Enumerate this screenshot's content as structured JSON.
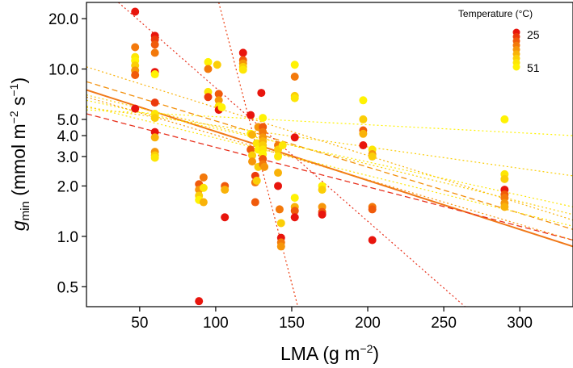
{
  "chart_data": {
    "type": "scatter",
    "xlabel": "LMA",
    "xlabel_unit_base": "g m",
    "xlabel_unit_exp": "−2",
    "xlabel_close": ")",
    "ylabel": {
      "main": "g",
      "sub": "min",
      "unit_open": " (mmol m",
      "exp1": "−2",
      "mid": " s",
      "exp2": "−1",
      "close": ")"
    },
    "xlim": [
      15,
      335
    ],
    "ylim": [
      0.38,
      25
    ],
    "yscale": "log",
    "xticks": [
      50,
      100,
      150,
      200,
      250,
      300
    ],
    "xtick_labels": [
      "50",
      "100",
      "150",
      "200",
      "250",
      "300"
    ],
    "yticks": [
      0.5,
      1.0,
      2.0,
      3.0,
      4.0,
      5.0,
      10.0,
      20.0
    ],
    "ytick_labels": [
      "0.5",
      "1.0",
      "2.0",
      "3.0",
      "4.0",
      "5.0",
      "10.0",
      "20.0"
    ],
    "legend": {
      "title": "Temperature (°C)",
      "min_label": "25",
      "max_label": "51",
      "placement": "top-right",
      "colors": [
        "#e8150d",
        "#ec3a0c",
        "#f05a0b",
        "#f3790b",
        "#f6960a",
        "#f9b209",
        "#fbce07",
        "#fde605",
        "#fff203"
      ]
    },
    "points": [
      {
        "x": 47,
        "y": 22,
        "c": "#e8150d"
      },
      {
        "x": 47,
        "y": 13.5,
        "c": "#f3790b"
      },
      {
        "x": 47,
        "y": 11.8,
        "c": "#fde605"
      },
      {
        "x": 47,
        "y": 11.2,
        "c": "#fff203"
      },
      {
        "x": 47,
        "y": 10.5,
        "c": "#fbce07"
      },
      {
        "x": 47,
        "y": 9.8,
        "c": "#f6960a"
      },
      {
        "x": 47,
        "y": 9.2,
        "c": "#f05a0b"
      },
      {
        "x": 47,
        "y": 5.8,
        "c": "#e8150d"
      },
      {
        "x": 60,
        "y": 15.8,
        "c": "#e8150d"
      },
      {
        "x": 60,
        "y": 15.0,
        "c": "#ec3a0c"
      },
      {
        "x": 60,
        "y": 14.0,
        "c": "#f05a0b"
      },
      {
        "x": 60,
        "y": 12.5,
        "c": "#f3790b"
      },
      {
        "x": 60,
        "y": 9.6,
        "c": "#e8150d"
      },
      {
        "x": 60,
        "y": 9.3,
        "c": "#fff203"
      },
      {
        "x": 60,
        "y": 6.3,
        "c": "#ec3a0c"
      },
      {
        "x": 60,
        "y": 5.4,
        "c": "#fde605"
      },
      {
        "x": 60,
        "y": 5.1,
        "c": "#fbce07"
      },
      {
        "x": 60,
        "y": 4.2,
        "c": "#e8150d"
      },
      {
        "x": 60,
        "y": 3.9,
        "c": "#f9b209"
      },
      {
        "x": 60,
        "y": 3.2,
        "c": "#f6960a"
      },
      {
        "x": 60,
        "y": 3.05,
        "c": "#fbce07"
      },
      {
        "x": 60,
        "y": 2.95,
        "c": "#fde605"
      },
      {
        "x": 89,
        "y": 0.41,
        "c": "#e8150d"
      },
      {
        "x": 89,
        "y": 2.05,
        "c": "#f05a0b"
      },
      {
        "x": 89,
        "y": 1.9,
        "c": "#f6960a"
      },
      {
        "x": 89,
        "y": 1.75,
        "c": "#fbce07"
      },
      {
        "x": 89,
        "y": 1.65,
        "c": "#fff203"
      },
      {
        "x": 92,
        "y": 2.25,
        "c": "#f3790b"
      },
      {
        "x": 92,
        "y": 1.95,
        "c": "#fde605"
      },
      {
        "x": 92,
        "y": 1.6,
        "c": "#f9b209"
      },
      {
        "x": 95,
        "y": 11.0,
        "c": "#fff203"
      },
      {
        "x": 95,
        "y": 10.0,
        "c": "#f3790b"
      },
      {
        "x": 95,
        "y": 7.3,
        "c": "#fde605"
      },
      {
        "x": 95,
        "y": 6.8,
        "c": "#ec3a0c"
      },
      {
        "x": 101,
        "y": 10.6,
        "c": "#fbce07"
      },
      {
        "x": 102,
        "y": 7.1,
        "c": "#f05a0b"
      },
      {
        "x": 102,
        "y": 6.5,
        "c": "#f6960a"
      },
      {
        "x": 102,
        "y": 6.0,
        "c": "#fde605"
      },
      {
        "x": 102,
        "y": 5.7,
        "c": "#e8150d"
      },
      {
        "x": 104,
        "y": 5.9,
        "c": "#fff203"
      },
      {
        "x": 106,
        "y": 2.0,
        "c": "#f05a0b"
      },
      {
        "x": 106,
        "y": 1.9,
        "c": "#f9b209"
      },
      {
        "x": 106,
        "y": 1.3,
        "c": "#e8150d"
      },
      {
        "x": 118,
        "y": 12.5,
        "c": "#e8150d"
      },
      {
        "x": 118,
        "y": 11.3,
        "c": "#f05a0b"
      },
      {
        "x": 118,
        "y": 10.8,
        "c": "#f6960a"
      },
      {
        "x": 118,
        "y": 10.3,
        "c": "#fbce07"
      },
      {
        "x": 118,
        "y": 9.9,
        "c": "#fde605"
      },
      {
        "x": 123,
        "y": 5.3,
        "c": "#e8150d"
      },
      {
        "x": 123,
        "y": 4.1,
        "c": "#fff203"
      },
      {
        "x": 123,
        "y": 3.3,
        "c": "#f05a0b"
      },
      {
        "x": 124,
        "y": 4.05,
        "c": "#f9b209"
      },
      {
        "x": 124,
        "y": 3.05,
        "c": "#fbce07"
      },
      {
        "x": 124,
        "y": 2.8,
        "c": "#f6960a"
      },
      {
        "x": 126,
        "y": 2.3,
        "c": "#ec3a0c"
      },
      {
        "x": 126,
        "y": 2.1,
        "c": "#f3790b"
      },
      {
        "x": 126,
        "y": 1.6,
        "c": "#f05a0b"
      },
      {
        "x": 127,
        "y": 3.6,
        "c": "#fde605"
      },
      {
        "x": 127,
        "y": 2.15,
        "c": "#fbce07"
      },
      {
        "x": 128,
        "y": 4.5,
        "c": "#f6960a"
      },
      {
        "x": 128,
        "y": 3.3,
        "c": "#fff203"
      },
      {
        "x": 128,
        "y": 2.6,
        "c": "#fbce07"
      },
      {
        "x": 130,
        "y": 7.2,
        "c": "#e8150d"
      },
      {
        "x": 131,
        "y": 5.1,
        "c": "#fff203"
      },
      {
        "x": 131,
        "y": 4.5,
        "c": "#f05a0b"
      },
      {
        "x": 131,
        "y": 4.2,
        "c": "#f3790b"
      },
      {
        "x": 131,
        "y": 3.9,
        "c": "#f6960a"
      },
      {
        "x": 131,
        "y": 3.7,
        "c": "#f9b209"
      },
      {
        "x": 131,
        "y": 3.5,
        "c": "#fbce07"
      },
      {
        "x": 131,
        "y": 3.3,
        "c": "#fde605"
      },
      {
        "x": 131,
        "y": 3.1,
        "c": "#fff203"
      },
      {
        "x": 131,
        "y": 2.9,
        "c": "#f05a0b"
      },
      {
        "x": 131,
        "y": 2.7,
        "c": "#f3790b"
      },
      {
        "x": 132,
        "y": 2.6,
        "c": "#f6960a"
      },
      {
        "x": 141,
        "y": 3.5,
        "c": "#f3790b"
      },
      {
        "x": 141,
        "y": 3.3,
        "c": "#fbce07"
      },
      {
        "x": 141,
        "y": 3.0,
        "c": "#fde605"
      },
      {
        "x": 141,
        "y": 2.4,
        "c": "#f9b209"
      },
      {
        "x": 141,
        "y": 2.0,
        "c": "#e8150d"
      },
      {
        "x": 142,
        "y": 1.45,
        "c": "#f3790b"
      },
      {
        "x": 143,
        "y": 1.2,
        "c": "#fbce07"
      },
      {
        "x": 143,
        "y": 0.98,
        "c": "#e8150d"
      },
      {
        "x": 143,
        "y": 0.92,
        "c": "#f3790b"
      },
      {
        "x": 143,
        "y": 0.87,
        "c": "#f6960a"
      },
      {
        "x": 144,
        "y": 3.5,
        "c": "#fde605"
      },
      {
        "x": 152,
        "y": 10.6,
        "c": "#fff203"
      },
      {
        "x": 152,
        "y": 9.0,
        "c": "#f3790b"
      },
      {
        "x": 152,
        "y": 6.9,
        "c": "#fbce07"
      },
      {
        "x": 152,
        "y": 6.7,
        "c": "#fde605"
      },
      {
        "x": 152,
        "y": 3.9,
        "c": "#e8150d"
      },
      {
        "x": 152,
        "y": 1.7,
        "c": "#fff203"
      },
      {
        "x": 152,
        "y": 1.5,
        "c": "#f9b209"
      },
      {
        "x": 152,
        "y": 1.42,
        "c": "#f05a0b"
      },
      {
        "x": 152,
        "y": 1.3,
        "c": "#e8150d"
      },
      {
        "x": 170,
        "y": 2.0,
        "c": "#fff203"
      },
      {
        "x": 170,
        "y": 1.9,
        "c": "#fbce07"
      },
      {
        "x": 170,
        "y": 1.5,
        "c": "#f6960a"
      },
      {
        "x": 170,
        "y": 1.4,
        "c": "#f05a0b"
      },
      {
        "x": 170,
        "y": 1.35,
        "c": "#e8150d"
      },
      {
        "x": 197,
        "y": 6.5,
        "c": "#fff203"
      },
      {
        "x": 197,
        "y": 5.0,
        "c": "#fbce07"
      },
      {
        "x": 197,
        "y": 4.3,
        "c": "#f05a0b"
      },
      {
        "x": 197,
        "y": 4.1,
        "c": "#f9b209"
      },
      {
        "x": 197,
        "y": 3.5,
        "c": "#e8150d"
      },
      {
        "x": 203,
        "y": 3.3,
        "c": "#fde605"
      },
      {
        "x": 203,
        "y": 3.1,
        "c": "#f6960a"
      },
      {
        "x": 203,
        "y": 3.0,
        "c": "#fbce07"
      },
      {
        "x": 203,
        "y": 1.5,
        "c": "#f3790b"
      },
      {
        "x": 203,
        "y": 1.45,
        "c": "#f05a0b"
      },
      {
        "x": 203,
        "y": 0.95,
        "c": "#e8150d"
      },
      {
        "x": 290,
        "y": 5.0,
        "c": "#fff203"
      },
      {
        "x": 290,
        "y": 2.35,
        "c": "#fde605"
      },
      {
        "x": 290,
        "y": 2.2,
        "c": "#fbce07"
      },
      {
        "x": 290,
        "y": 1.9,
        "c": "#e8150d"
      },
      {
        "x": 290,
        "y": 1.78,
        "c": "#f05a0b"
      },
      {
        "x": 290,
        "y": 1.7,
        "c": "#f3790b"
      },
      {
        "x": 290,
        "y": 1.58,
        "c": "#f6960a"
      },
      {
        "x": 290,
        "y": 1.5,
        "c": "#f9b209"
      }
    ],
    "fit_lines": [
      {
        "name": "overall",
        "color": "#f07818",
        "dash": "solid",
        "width": 2,
        "y0": 7.5,
        "y1": 0.87
      },
      {
        "name": "fit-25-dashed",
        "color": "#e8321e",
        "dash": "dashed",
        "width": 1.3,
        "y0": 5.4,
        "y1": 0.95
      },
      {
        "name": "fit-mid-dashed",
        "color": "#f3900c",
        "dash": "dashed",
        "width": 1.3,
        "y0": 8.4,
        "y1": 1.1
      },
      {
        "name": "fit-a",
        "color": "#f9b209",
        "dash": "dotted",
        "width": 1.2,
        "y0": 10.3,
        "y1": 1.25
      },
      {
        "name": "fit-b",
        "color": "#fbce07",
        "dash": "dotted",
        "width": 1.2,
        "y0": 7.0,
        "y1": 1.35
      },
      {
        "name": "fit-c",
        "color": "#fde605",
        "dash": "dotted",
        "width": 1.2,
        "y0": 6.5,
        "y1": 1.5
      },
      {
        "name": "fit-d",
        "color": "#fff203",
        "dash": "dotted",
        "width": 1.2,
        "y0": 5.7,
        "y1": 4.0
      },
      {
        "name": "fit-e",
        "color": "#fde605",
        "dash": "dotted",
        "width": 1.2,
        "y0": 6.0,
        "y1": 1.15
      },
      {
        "name": "fit-f",
        "color": "#f6960a",
        "dash": "dotted",
        "width": 1.2,
        "y0": 6.8,
        "y1": 0.95
      },
      {
        "name": "fit-g",
        "color": "#fbce07",
        "dash": "dotted",
        "width": 1.2,
        "y0": 5.9,
        "y1": 2.3
      },
      {
        "name": "steep-1",
        "color": "#e8321e",
        "dash": "dotted",
        "width": 1.2,
        "x0": 36,
        "ya": 25,
        "x1": 264,
        "yb": 0.38
      },
      {
        "name": "steep-2",
        "color": "#ec3a0c",
        "dash": "dotted",
        "width": 1.2,
        "x0": 102,
        "ya": 25,
        "x1": 154,
        "yb": 0.38
      }
    ]
  }
}
